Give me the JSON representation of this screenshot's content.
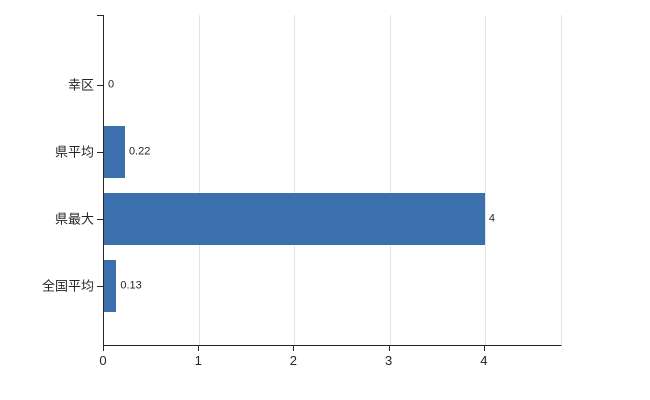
{
  "chart_data": {
    "type": "bar",
    "orientation": "horizontal",
    "title": "",
    "xlabel": "",
    "ylabel": "",
    "categories": [
      "幸区",
      "県平均",
      "県最大",
      "全国平均"
    ],
    "values": [
      0,
      0.22,
      4,
      0.13
    ],
    "value_labels": [
      "0",
      "0.22",
      "4",
      "0.13"
    ],
    "x_ticks": [
      0,
      1,
      2,
      3,
      4
    ],
    "xlim": [
      0,
      4.8
    ],
    "grid": true,
    "legend": false,
    "bar_color": "#3c6fae",
    "axis_color": "#262626",
    "gridline_color": "#e3e3e3",
    "background_color": "#ffffff"
  }
}
